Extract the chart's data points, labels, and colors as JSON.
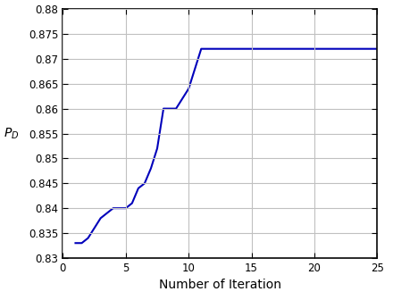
{
  "x": [
    1,
    1.5,
    2,
    3,
    4,
    5,
    5.5,
    6,
    6.5,
    7,
    7.5,
    8,
    8.5,
    9,
    9.5,
    10,
    10.5,
    11,
    12,
    13,
    14,
    15,
    16,
    17,
    18,
    19,
    20,
    21,
    22,
    23,
    24,
    25
  ],
  "y": [
    0.833,
    0.833,
    0.834,
    0.838,
    0.84,
    0.84,
    0.841,
    0.844,
    0.845,
    0.848,
    0.852,
    0.86,
    0.86,
    0.86,
    0.862,
    0.864,
    0.868,
    0.872,
    0.872,
    0.872,
    0.872,
    0.872,
    0.872,
    0.872,
    0.872,
    0.872,
    0.872,
    0.872,
    0.872,
    0.872,
    0.872,
    0.872
  ],
  "line_color": "#0000BB",
  "line_width": 1.5,
  "xlabel": "Number of Iteration",
  "ylabel": "$P_D$",
  "xlim": [
    0,
    25
  ],
  "ylim": [
    0.83,
    0.88
  ],
  "xticks": [
    0,
    5,
    10,
    15,
    20,
    25
  ],
  "yticks": [
    0.83,
    0.835,
    0.84,
    0.845,
    0.85,
    0.855,
    0.86,
    0.865,
    0.87,
    0.875,
    0.88
  ],
  "grid_color": "#c0c0c0",
  "background_color": "#ffffff",
  "tick_fontsize": 8.5,
  "label_fontsize": 10,
  "axes_linewidth": 1.2
}
